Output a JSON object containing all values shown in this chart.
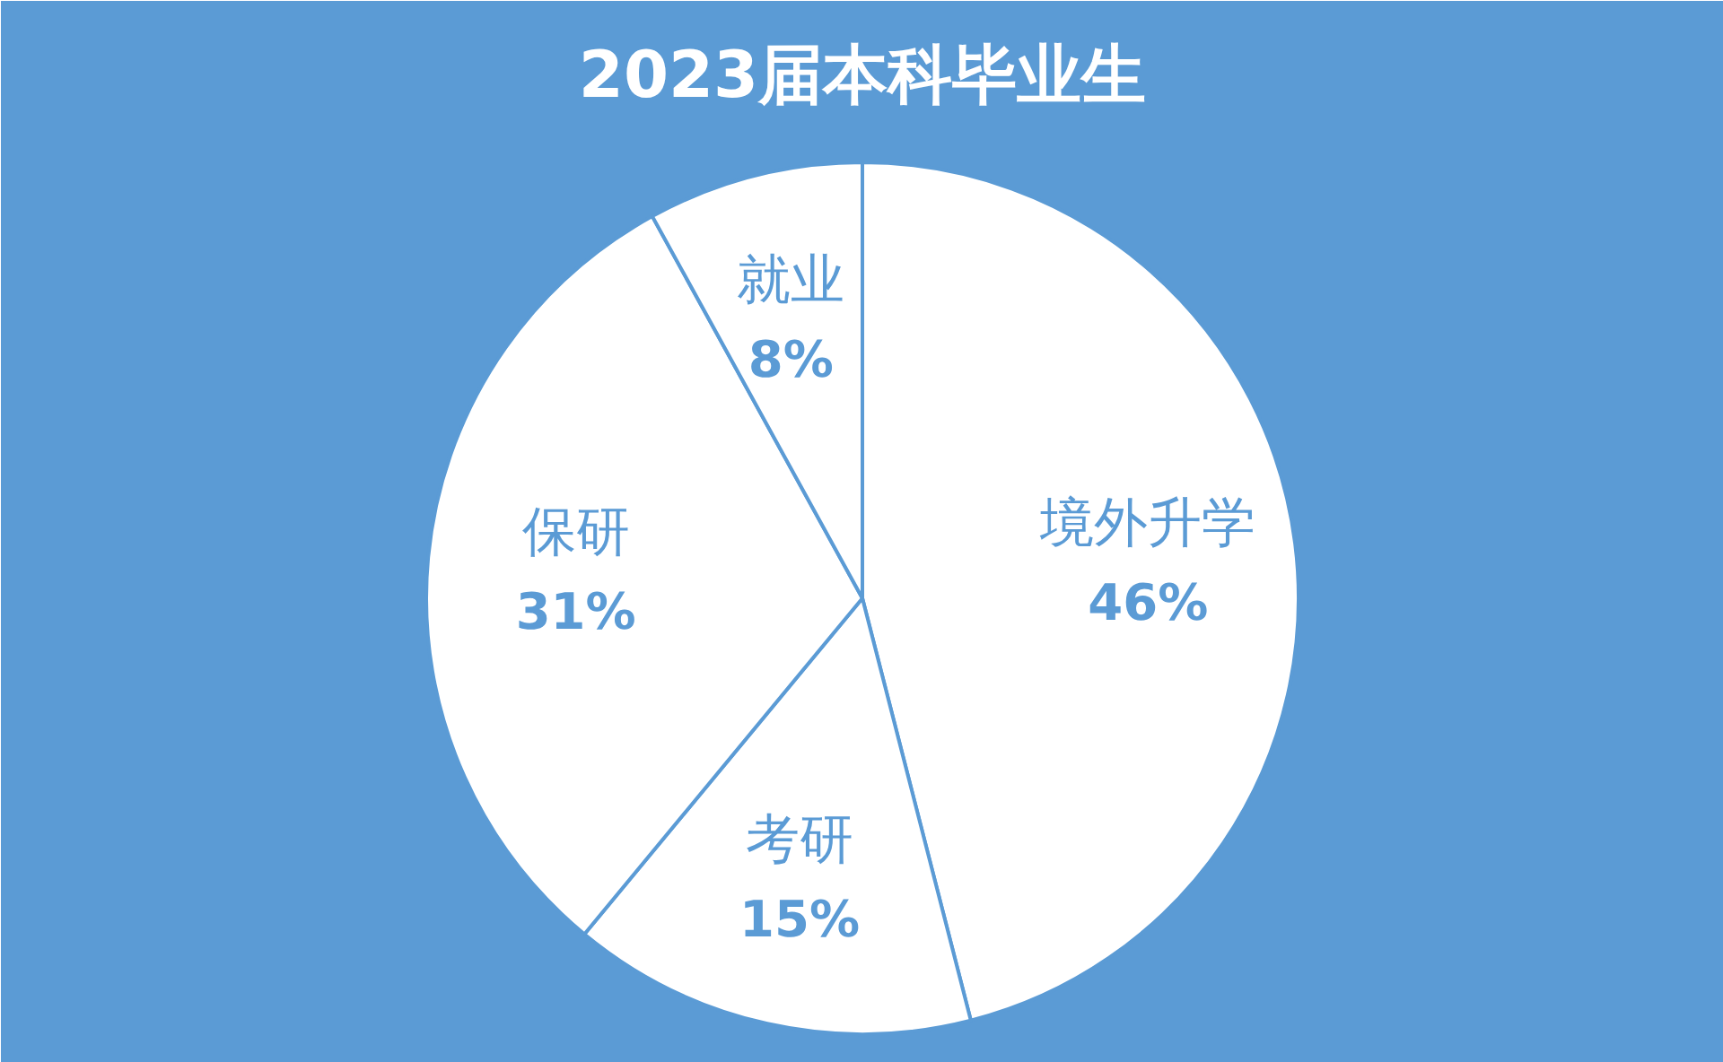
{
  "chart_data": {
    "type": "pie",
    "title": "2023届本科毕业生",
    "categories": [
      "境外升学",
      "考研",
      "保研",
      "就业"
    ],
    "values": [
      46,
      15,
      31,
      8
    ],
    "value_labels": [
      "46%",
      "15%",
      "31%",
      "8%"
    ],
    "colors": [
      "#ffffff",
      "#ffffff",
      "#ffffff",
      "#ffffff"
    ]
  }
}
